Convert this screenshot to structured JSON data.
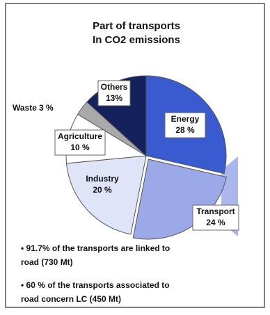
{
  "chart_data": {
    "type": "pie",
    "title": [
      "Part of transports",
      "In CO2 emissions"
    ],
    "categories": [
      "Energy",
      "Transport",
      "Industry",
      "Agriculture",
      "Waste",
      "Others"
    ],
    "values": [
      28,
      24,
      20,
      10,
      3,
      13
    ],
    "value_labels": [
      "28 %",
      "24 %",
      "20 %",
      "10 %",
      "3 %",
      "13%"
    ],
    "colors": [
      "#3a5bd0",
      "#9ba9e8",
      "#dfe4f8",
      "#ffffff",
      "#a9a9a9",
      "#15215c"
    ],
    "annotations": [
      "• 91.7% of the transports are linked to",
      "road (730 Mt)",
      "• 60 % of the transports associated to",
      "road concern LC (450 Mt)"
    ]
  }
}
